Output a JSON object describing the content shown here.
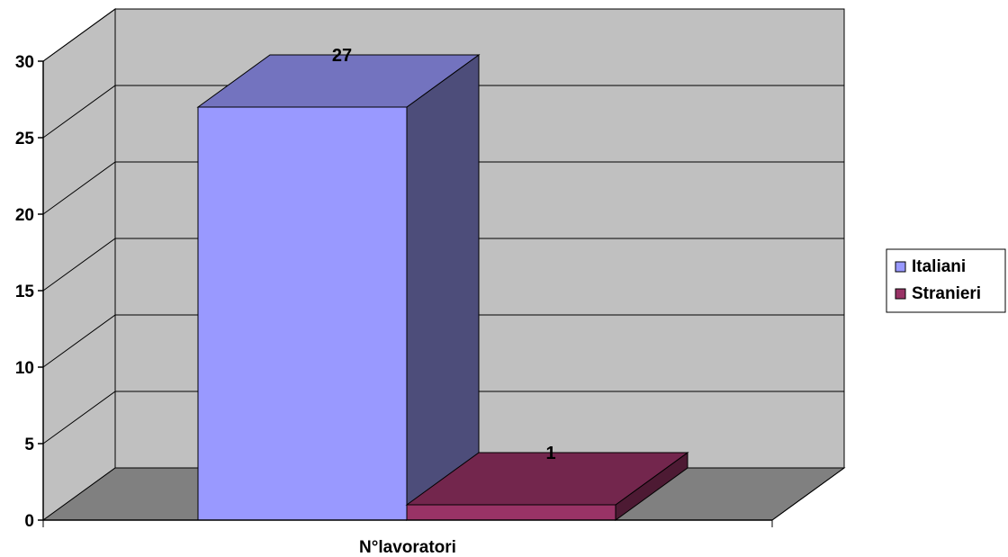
{
  "chart_data": {
    "type": "bar",
    "categories": [
      "N°lavoratori"
    ],
    "series": [
      {
        "name": "Italiani",
        "values": [
          27
        ],
        "color": "#9999ff",
        "side_color": "#4d4d7a",
        "top_color": "#7373bf"
      },
      {
        "name": "Stranieri",
        "values": [
          1
        ],
        "color": "#993366",
        "side_color": "#4d1a33",
        "top_color": "#73264d"
      }
    ],
    "ylim": [
      0,
      30
    ],
    "yticks": [
      "0",
      "5",
      "10",
      "15",
      "20",
      "25",
      "30"
    ],
    "data_labels": [
      "27",
      "1"
    ],
    "grid": true,
    "legend_position": "right",
    "wall_color": "#c0c0c0",
    "floor_color": "#808080",
    "three_d": true
  }
}
